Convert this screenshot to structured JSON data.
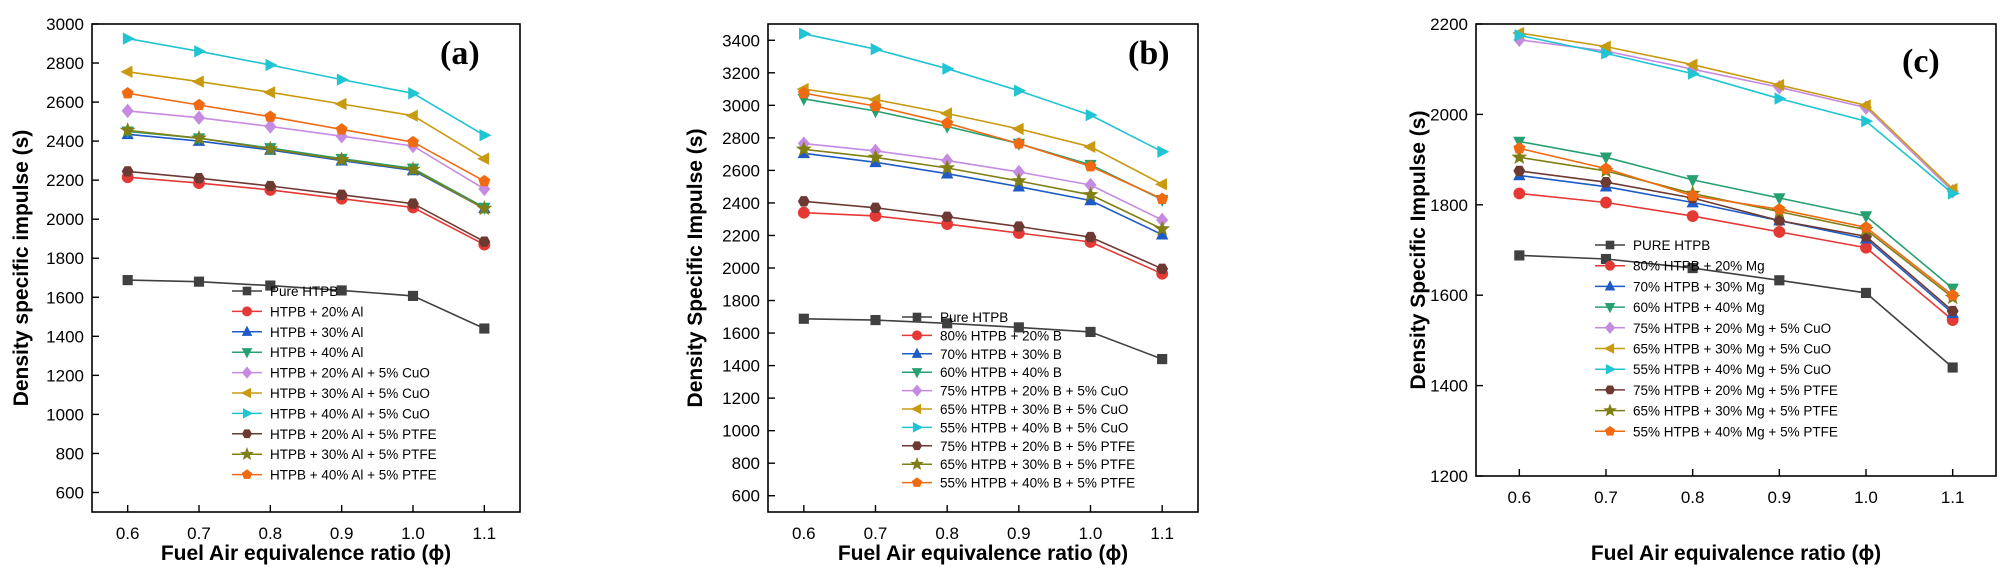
{
  "colors": {
    "pure": "#404040",
    "s20": "#e53935",
    "s30": "#1e5bc6",
    "s40": "#27a070",
    "c20": "#c58be0",
    "c30": "#c99a10",
    "c40": "#20c4d2",
    "p20": "#6d3a33",
    "p30": "#7f7f16",
    "p40": "#f06a12"
  },
  "chart_data": [
    {
      "type": "line",
      "panel_label": "(a)",
      "xlabel": "Fuel Air equivalence ratio (ϕ)",
      "ylabel": "Density specific impulse (s)",
      "x": [
        0.6,
        0.7,
        0.8,
        0.9,
        1.0,
        1.1
      ],
      "x_ticks": [
        "0.6",
        "0.7",
        "0.8",
        "0.9",
        "1.0",
        "1.1"
      ],
      "xlim": [
        0.55,
        1.15
      ],
      "ylim": [
        500,
        3000
      ],
      "y_ticks": [
        600,
        800,
        1000,
        1200,
        1400,
        1600,
        1800,
        2000,
        2200,
        2400,
        2600,
        2800,
        3000
      ],
      "legend_position": "lower-center",
      "series": [
        {
          "name": "Pure HTPB",
          "marker": "square",
          "color_key": "pure",
          "values": [
            1688,
            1680,
            1660,
            1635,
            1607,
            1440
          ]
        },
        {
          "name": "HTPB + 20% Al",
          "marker": "circle",
          "color_key": "s20",
          "values": [
            2215,
            2185,
            2150,
            2105,
            2060,
            1870
          ]
        },
        {
          "name": "HTPB + 30% Al",
          "marker": "triangle-up",
          "color_key": "s30",
          "values": [
            2435,
            2400,
            2355,
            2300,
            2250,
            2055
          ]
        },
        {
          "name": "HTPB + 40% Al",
          "marker": "triangle-down",
          "color_key": "s40",
          "values": [
            2450,
            2415,
            2365,
            2310,
            2260,
            2060
          ]
        },
        {
          "name": "HTPB + 20% Al + 5% CuO",
          "marker": "diamond",
          "color_key": "c20",
          "values": [
            2555,
            2520,
            2475,
            2425,
            2375,
            2155
          ]
        },
        {
          "name": "HTPB + 30% Al + 5% CuO",
          "marker": "triangle-left",
          "color_key": "c30",
          "values": [
            2755,
            2705,
            2650,
            2590,
            2530,
            2310
          ]
        },
        {
          "name": "HTPB + 40% Al + 5% CuO",
          "marker": "triangle-right",
          "color_key": "c40",
          "values": [
            2925,
            2860,
            2790,
            2715,
            2645,
            2430
          ]
        },
        {
          "name": "HTPB + 20% Al + 5% PTFE",
          "marker": "hexagon",
          "color_key": "p20",
          "values": [
            2245,
            2210,
            2170,
            2125,
            2080,
            1885
          ]
        },
        {
          "name": "HTPB + 30% Al + 5% PTFE",
          "marker": "star",
          "color_key": "p30",
          "values": [
            2455,
            2415,
            2360,
            2305,
            2255,
            2055
          ]
        },
        {
          "name": "HTPB + 40% Al + 5% PTFE",
          "marker": "pentagon",
          "color_key": "p40",
          "values": [
            2645,
            2585,
            2525,
            2460,
            2395,
            2195
          ]
        }
      ]
    },
    {
      "type": "line",
      "panel_label": "(b)",
      "xlabel": "Fuel Air equivalence ratio (ϕ)",
      "ylabel": "Density Specific Impulse (s)",
      "x": [
        0.6,
        0.7,
        0.8,
        0.9,
        1.0,
        1.1
      ],
      "x_ticks": [
        "0.6",
        "0.7",
        "0.8",
        "0.9",
        "1.0",
        "1.1"
      ],
      "xlim": [
        0.55,
        1.15
      ],
      "ylim": [
        500,
        3500
      ],
      "y_ticks": [
        600,
        800,
        1000,
        1200,
        1400,
        1600,
        1800,
        2000,
        2200,
        2400,
        2600,
        2800,
        3000,
        3200,
        3400
      ],
      "legend_position": "lower-center",
      "series": [
        {
          "name": "Pure HTPB",
          "marker": "square",
          "color_key": "pure",
          "values": [
            1688,
            1680,
            1660,
            1635,
            1607,
            1440
          ]
        },
        {
          "name": "80% HTPB + 20% B",
          "marker": "circle",
          "color_key": "s20",
          "values": [
            2340,
            2320,
            2270,
            2215,
            2160,
            1965
          ]
        },
        {
          "name": "70% HTPB + 30% B",
          "marker": "triangle-up",
          "color_key": "s30",
          "values": [
            2705,
            2650,
            2580,
            2500,
            2415,
            2205
          ]
        },
        {
          "name": "60% HTPB + 40% B",
          "marker": "triangle-down",
          "color_key": "s40",
          "values": [
            3040,
            2965,
            2870,
            2765,
            2635,
            2420
          ]
        },
        {
          "name": "75% HTPB + 20% B + 5% CuO",
          "marker": "diamond",
          "color_key": "c20",
          "values": [
            2765,
            2720,
            2660,
            2590,
            2510,
            2295
          ]
        },
        {
          "name": "65% HTPB + 30% B + 5% CuO",
          "marker": "triangle-left",
          "color_key": "c30",
          "values": [
            3100,
            3035,
            2950,
            2855,
            2745,
            2515
          ]
        },
        {
          "name": "55% HTPB + 40% B + 5% CuO",
          "marker": "triangle-right",
          "color_key": "c40",
          "values": [
            3440,
            3345,
            3225,
            3090,
            2940,
            2715
          ]
        },
        {
          "name": "75% HTPB + 20% B + 5% PTFE",
          "marker": "hexagon",
          "color_key": "p20",
          "values": [
            2410,
            2370,
            2315,
            2255,
            2190,
            1995
          ]
        },
        {
          "name": "65% HTPB + 30% B + 5% PTFE",
          "marker": "star",
          "color_key": "p30",
          "values": [
            2730,
            2680,
            2615,
            2535,
            2450,
            2240
          ]
        },
        {
          "name": "55% HTPB + 40% B + 5% PTFE",
          "marker": "pentagon",
          "color_key": "p40",
          "values": [
            3075,
            2995,
            2890,
            2765,
            2625,
            2425
          ]
        }
      ]
    },
    {
      "type": "line",
      "panel_label": "(c)",
      "xlabel": "Fuel Air equivalence ratio (ϕ)",
      "ylabel": "Density Specific Impulse (s)",
      "x": [
        0.6,
        0.7,
        0.8,
        0.9,
        1.0,
        1.1
      ],
      "x_ticks": [
        "0.6",
        "0.7",
        "0.8",
        "0.9",
        "1.0",
        "1.1"
      ],
      "xlim": [
        0.55,
        1.15
      ],
      "ylim": [
        1200,
        2200
      ],
      "y_ticks": [
        1200,
        1400,
        1600,
        1800,
        2000,
        2200
      ],
      "legend_position": "lower-center",
      "series": [
        {
          "name": "PURE HTPB",
          "marker": "square",
          "color_key": "pure",
          "values": [
            1688,
            1680,
            1660,
            1633,
            1605,
            1440
          ]
        },
        {
          "name": "80% HTPB + 20% Mg",
          "marker": "circle",
          "color_key": "s20",
          "values": [
            1825,
            1805,
            1775,
            1740,
            1705,
            1545
          ]
        },
        {
          "name": "70% HTPB + 30% Mg",
          "marker": "triangle-up",
          "color_key": "s30",
          "values": [
            1865,
            1840,
            1805,
            1765,
            1725,
            1560
          ]
        },
        {
          "name": "60% HTPB + 40% Mg",
          "marker": "triangle-down",
          "color_key": "s40",
          "values": [
            1940,
            1905,
            1855,
            1815,
            1775,
            1615
          ]
        },
        {
          "name": "75% HTPB + 20% Mg + 5% CuO",
          "marker": "diamond",
          "color_key": "c20",
          "values": [
            2165,
            2140,
            2100,
            2060,
            2015,
            1830
          ]
        },
        {
          "name": "65% HTPB + 30% Mg + 5% CuO",
          "marker": "triangle-left",
          "color_key": "c30",
          "values": [
            2180,
            2150,
            2110,
            2065,
            2020,
            1835
          ]
        },
        {
          "name": "55% HTPB + 40% Mg + 5% CuO",
          "marker": "triangle-right",
          "color_key": "c40",
          "values": [
            2175,
            2135,
            2090,
            2035,
            1985,
            1825
          ]
        },
        {
          "name": "75% HTPB + 20% Mg + 5% PTFE",
          "marker": "hexagon",
          "color_key": "p20",
          "values": [
            1875,
            1850,
            1815,
            1765,
            1730,
            1565
          ]
        },
        {
          "name": "65% HTPB + 30% Mg + 5% PTFE",
          "marker": "star",
          "color_key": "p30",
          "values": [
            1905,
            1875,
            1825,
            1785,
            1745,
            1595
          ]
        },
        {
          "name": "55% HTPB + 40% Mg + 5% PTFE",
          "marker": "pentagon",
          "color_key": "p40",
          "values": [
            1925,
            1880,
            1820,
            1790,
            1750,
            1600
          ]
        }
      ]
    }
  ]
}
